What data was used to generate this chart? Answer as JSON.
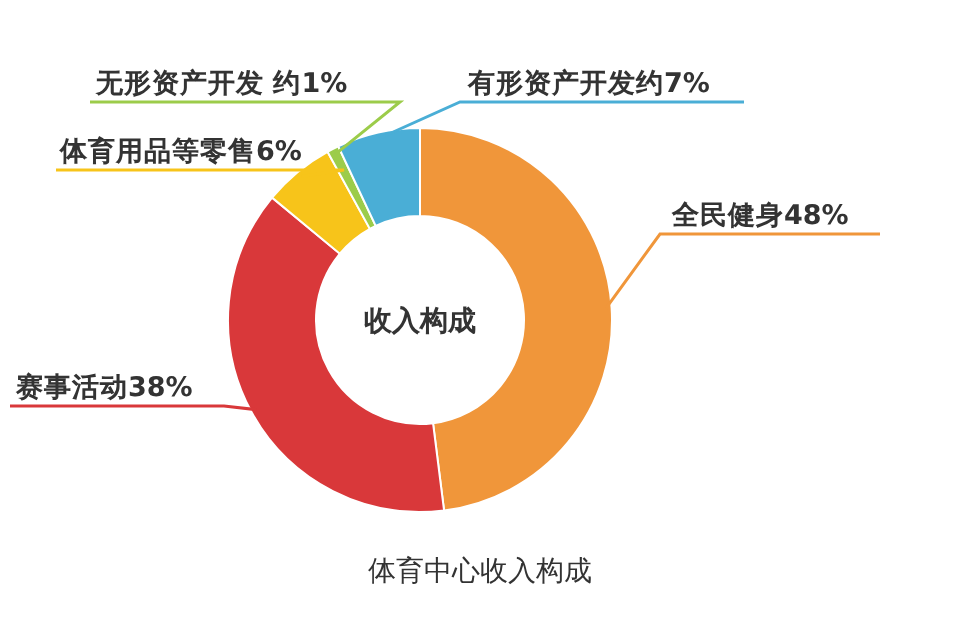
{
  "chart_data": {
    "type": "donut",
    "title": "体育中心收入构成",
    "annotations": [
      "收入构成"
    ],
    "categories": [
      "全民健身48%",
      "赛事活动38%",
      "体育用品等零售6%",
      "无形资产开发 约1%",
      "有形资产开发约7%"
    ],
    "values": [
      48,
      38,
      6,
      1,
      7
    ],
    "colors": [
      "#f0963a",
      "#d9383a",
      "#f7c41a",
      "#9ccc4a",
      "#4aaed6"
    ]
  }
}
